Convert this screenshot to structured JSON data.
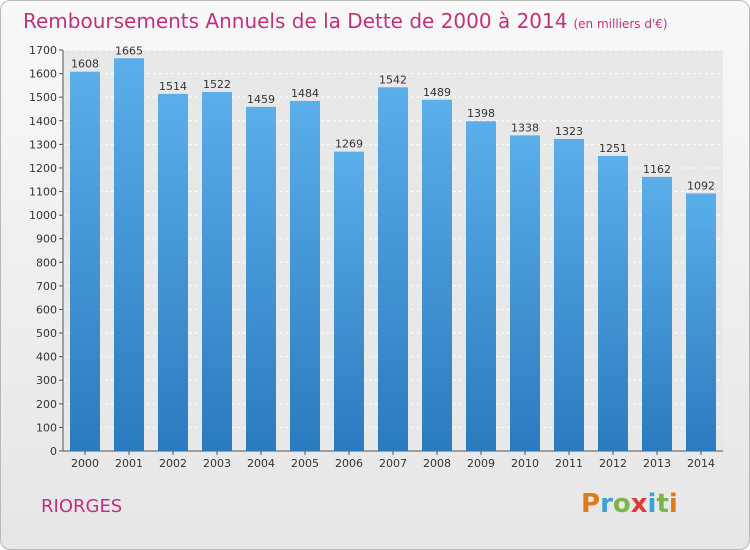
{
  "header": {
    "title": "Remboursements Annuels de la Dette de 2000 à 2014",
    "subtitle": "(en milliers d'€)"
  },
  "footer": {
    "commune": "RIORGES",
    "logo": "Proxiti"
  },
  "colors": {
    "accent": "#c0317d",
    "bar_top": "#5aaeea",
    "bar_bottom": "#2a7bbf"
  },
  "chart_data": {
    "type": "bar",
    "title": "Remboursements Annuels de la Dette de 2000 à 2014",
    "ylabel": "(en milliers d'€)",
    "xlabel": "",
    "categories": [
      "2000",
      "2001",
      "2002",
      "2003",
      "2004",
      "2005",
      "2006",
      "2007",
      "2008",
      "2009",
      "2010",
      "2011",
      "2012",
      "2013",
      "2014"
    ],
    "values": [
      1608,
      1665,
      1514,
      1522,
      1459,
      1484,
      1269,
      1542,
      1489,
      1398,
      1338,
      1323,
      1251,
      1162,
      1092
    ],
    "ylim": [
      0,
      1700
    ],
    "yticks": [
      0,
      100,
      200,
      300,
      400,
      500,
      600,
      700,
      800,
      900,
      1000,
      1100,
      1200,
      1300,
      1400,
      1500,
      1600,
      1700
    ],
    "grid": true,
    "legend": "none"
  }
}
